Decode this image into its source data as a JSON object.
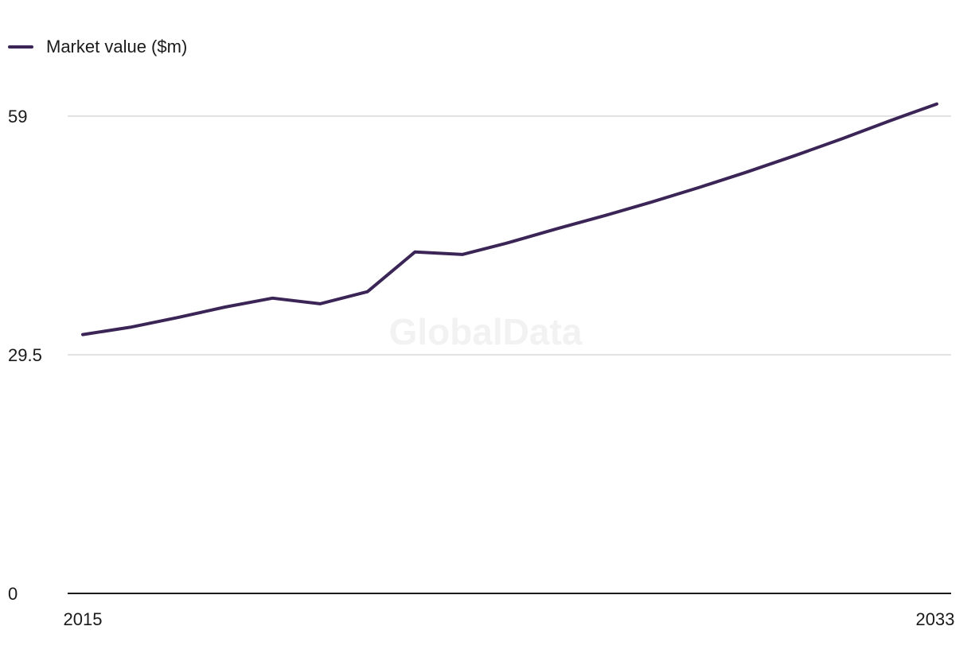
{
  "legend": {
    "label": "Market value ($m)",
    "color": "#3b2556"
  },
  "watermark": "GlobalData",
  "colors": {
    "line": "#3b2556",
    "grid": "#d8d8dc",
    "axis": "#1a1a1a"
  },
  "chart_data": {
    "type": "line",
    "title": "",
    "xlabel": "",
    "ylabel": "",
    "x": [
      2015,
      2016,
      2017,
      2018,
      2019,
      2020,
      2021,
      2022,
      2023,
      2024,
      2025,
      2026,
      2027,
      2028,
      2029,
      2030,
      2031,
      2032,
      2033
    ],
    "x_tick_labels": [
      "2015",
      "2033"
    ],
    "y_ticks": [
      0,
      29.5,
      59
    ],
    "y_tick_labels": [
      "0",
      "29.5",
      "59"
    ],
    "ylim": [
      0,
      59
    ],
    "grid": true,
    "legend_position": "top-left",
    "series": [
      {
        "name": "Market value ($m)",
        "values": [
          32.0,
          32.9,
          34.1,
          35.4,
          36.5,
          35.8,
          37.3,
          42.2,
          41.9,
          43.4,
          45.1,
          46.7,
          48.4,
          50.2,
          52.1,
          54.1,
          56.2,
          58.4,
          60.5
        ]
      }
    ]
  }
}
